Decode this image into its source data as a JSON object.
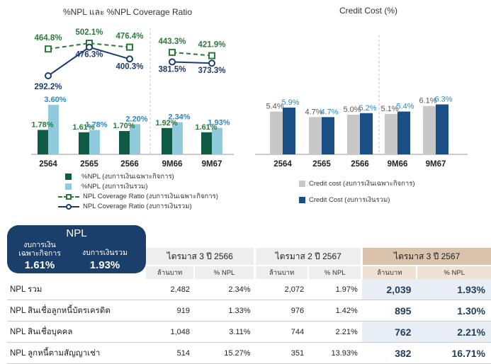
{
  "chart_data": [
    {
      "type": "bar",
      "title": "%NPL และ %NPL Coverage Ratio",
      "categories": [
        "2564",
        "2565",
        "2566",
        "9M66",
        "9M67"
      ],
      "ylabel": "",
      "series": [
        {
          "name": "%NPL (งบการเงินเฉพาะกิจการ)",
          "values": [
            1.78,
            1.61,
            1.7,
            1.92,
            1.61
          ],
          "labels": [
            "1.78%",
            "1.61%",
            "1.70%",
            "1.92%",
            "1.61%"
          ]
        },
        {
          "name": "%NPL (งบการเงินรวม)",
          "values": [
            3.6,
            1.78,
            2.2,
            2.34,
            1.93
          ],
          "labels": [
            "3.60%",
            "1.78%",
            "2.20%",
            "2.34%",
            "1.93%"
          ]
        },
        {
          "name": "NPL Coverage Ratio (งบการเงินเฉพาะกิจการ)",
          "type": "line",
          "values": [
            464.8,
            502.1,
            476.4,
            443.3,
            421.9
          ],
          "labels": [
            "464.8%",
            "502.1%",
            "476.4%",
            "443.3%",
            "421.9%"
          ]
        },
        {
          "name": "NPL Coverage Ratio (งบการเงินรวม)",
          "type": "line",
          "values": [
            292.2,
            476.3,
            400.3,
            381.5,
            373.3
          ],
          "labels": [
            "292.2%",
            "476.3%",
            "400.3%",
            "381.5%",
            "373.3%"
          ]
        }
      ],
      "colors": {
        "npl_company": "#0f5b45",
        "npl_consolidated": "#8fcbdc",
        "coverage_company": "#2b7a3a",
        "coverage_consolidated": "#1c3d6e"
      },
      "grid": false,
      "legend": "bottom"
    },
    {
      "type": "bar",
      "title": "Credit Cost (%)",
      "categories": [
        "2564",
        "2565",
        "2566",
        "9M66",
        "9M67"
      ],
      "series": [
        {
          "name": "Credit cost (งบการเงินเฉพาะกิจการ)",
          "values": [
            5.4,
            4.7,
            5.0,
            5.1,
            6.1
          ],
          "labels": [
            "5.4%",
            "4.7%",
            "5.0%",
            "5.1%",
            "6.1%"
          ]
        },
        {
          "name": "Credit Cost (งบการเงินรวม)",
          "values": [
            5.9,
            4.7,
            5.2,
            5.4,
            6.3
          ],
          "labels": [
            "5.9%",
            "4.7%",
            "5.2%",
            "5.4%",
            "6.3%"
          ]
        }
      ],
      "colors": {
        "company": "#c8c8c8",
        "consolidated": "#1a4f85"
      },
      "grid": false,
      "legend": "bottom"
    }
  ],
  "npl_badge": {
    "title": "NPL",
    "company_label": "งบการเงิน เฉพาะกิจการ",
    "consolidated_label": "งบการเงินรวม",
    "company_value": "1.61%",
    "consolidated_value": "1.93%"
  },
  "table": {
    "periods": [
      "ไตรมาส 3 ปี 2566",
      "ไตรมาส 2 ปี 2567",
      "ไตรมาส 3 ปี 2567"
    ],
    "unit_amount": "ล้านบาท",
    "unit_pct": "% NPL",
    "rows": [
      {
        "label": "NPL รวม",
        "q3_66_amt": "2,482",
        "q3_66_pct": "2.34%",
        "q2_67_amt": "2,072",
        "q2_67_pct": "1.97%",
        "q3_67_amt": "2,039",
        "q3_67_pct": "1.93%"
      },
      {
        "label": "NPL สินเชื่อลูกหนี้บัตรเครดิต",
        "q3_66_amt": "919",
        "q3_66_pct": "1.33%",
        "q2_67_amt": "976",
        "q2_67_pct": "1.42%",
        "q3_67_amt": "895",
        "q3_67_pct": "1.30%"
      },
      {
        "label": "NPL สินเชื่อบุคคล",
        "q3_66_amt": "1,048",
        "q3_66_pct": "3.11%",
        "q2_67_amt": "744",
        "q2_67_pct": "2.21%",
        "q3_67_amt": "762",
        "q3_67_pct": "2.21%"
      },
      {
        "label": "NPL ลูกหนี้ตามสัญญาเช่า",
        "q3_66_amt": "514",
        "q3_66_pct": "15.27%",
        "q2_67_amt": "351",
        "q2_67_pct": "13.93%",
        "q3_67_amt": "382",
        "q3_67_pct": "16.71%"
      }
    ]
  }
}
